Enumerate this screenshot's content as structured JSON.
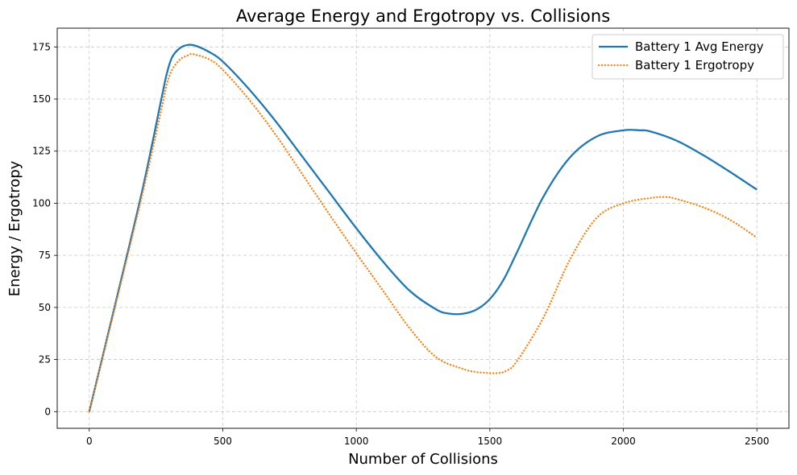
{
  "chart_data": {
    "type": "line",
    "title": "Average Energy and Ergotropy vs. Collisions",
    "xlabel": "Number of Collisions",
    "ylabel": "Energy / Ergotropy",
    "xlim": [
      -120,
      2620
    ],
    "ylim": [
      -8,
      184
    ],
    "xticks": [
      0,
      500,
      1000,
      1500,
      2000,
      2500
    ],
    "yticks": [
      0,
      25,
      50,
      75,
      100,
      125,
      150,
      175
    ],
    "grid": true,
    "legend_position": "top-right",
    "series": [
      {
        "name": "Battery 1 Avg Energy",
        "color": "#1f77b4",
        "style": "solid",
        "x": [
          0,
          100,
          200,
          270,
          290,
          310,
          340,
          370,
          400,
          450,
          500,
          600,
          700,
          800,
          900,
          1000,
          1100,
          1200,
          1300,
          1350,
          1400,
          1450,
          1500,
          1550,
          1600,
          1700,
          1800,
          1900,
          2000,
          2060,
          2100,
          2200,
          2300,
          2400,
          2500
        ],
        "y": [
          0,
          53,
          107,
          150,
          162,
          170,
          174.5,
          176,
          175.5,
          172.5,
          168,
          154.5,
          139,
          122,
          105,
          88,
          72,
          58,
          49,
          47,
          47,
          49,
          54,
          63,
          76,
          103,
          122,
          132,
          135,
          135,
          134.5,
          130,
          123,
          115,
          106.5
        ]
      },
      {
        "name": "Battery 1 Ergotropy",
        "color": "#ff7f0e",
        "style": "dotted",
        "x": [
          0,
          100,
          200,
          270,
          290,
          310,
          340,
          370,
          390,
          450,
          500,
          600,
          700,
          800,
          900,
          1000,
          1100,
          1200,
          1300,
          1400,
          1450,
          1500,
          1530,
          1560,
          1600,
          1700,
          1800,
          1900,
          2000,
          2100,
          2160,
          2200,
          2300,
          2400,
          2500
        ],
        "y": [
          0,
          52,
          105,
          145,
          157,
          164,
          169,
          171,
          171.5,
          169,
          164,
          149.5,
          132.5,
          113.5,
          94.5,
          76,
          58,
          40,
          26,
          20.5,
          19,
          18.5,
          18.5,
          19.5,
          24,
          45,
          73,
          93,
          100,
          102.5,
          103,
          102,
          98,
          92,
          83.5
        ]
      }
    ]
  }
}
